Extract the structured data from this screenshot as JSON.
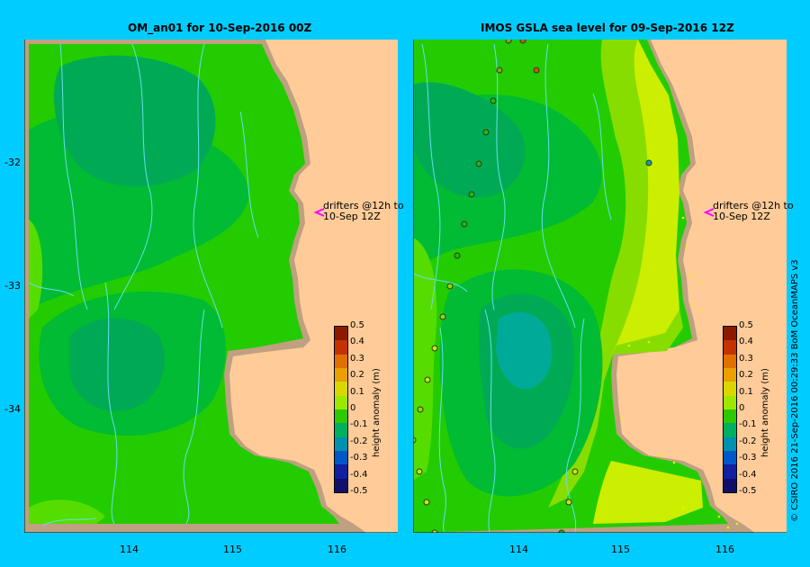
{
  "panels": [
    {
      "title": "OM_an01  for 10-Sep-2016 00Z"
    },
    {
      "title": "IMOS  GSLA sea level   for 09-Sep-2016 12Z"
    }
  ],
  "y_ticks": [
    "-32",
    "-33",
    "-34"
  ],
  "x_ticks": [
    "114",
    "115",
    "116"
  ],
  "drifter_note": {
    "line1": "drifters @12h to",
    "line2": "10-Sep 12Z"
  },
  "colorbar": {
    "title": "height anomaly (m)",
    "ticks": [
      "0.5",
      "0.4",
      "0.3",
      "0.2",
      "0.1",
      "0",
      "-0.1",
      "-0.2",
      "-0.3",
      "-0.4",
      "-0.5"
    ],
    "colors": [
      "#8b1a00",
      "#c43200",
      "#e07000",
      "#eaa000",
      "#d8d800",
      "#9ce800",
      "#2ec800",
      "#00b060",
      "#0090b0",
      "#0058c8",
      "#1020a0",
      "#10106a"
    ]
  },
  "credit": "© CSIRO 2016   21-Sep-2016 00:29:33 BoM OceanMAPS v3",
  "colors": {
    "land": "#ffcc99",
    "coast": "#bfa080",
    "background": "#00ccff",
    "arrow": "#ff00ff"
  }
}
